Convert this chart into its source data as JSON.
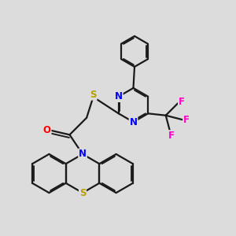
{
  "bg_color": "#dcdcdc",
  "bond_color": "#1a1a1a",
  "bond_width": 1.6,
  "dbo": 0.055,
  "atom_colors": {
    "N": "#0000ff",
    "S": "#b8a000",
    "O": "#ff0000",
    "F": "#ff00cc"
  },
  "fs": 8.5
}
